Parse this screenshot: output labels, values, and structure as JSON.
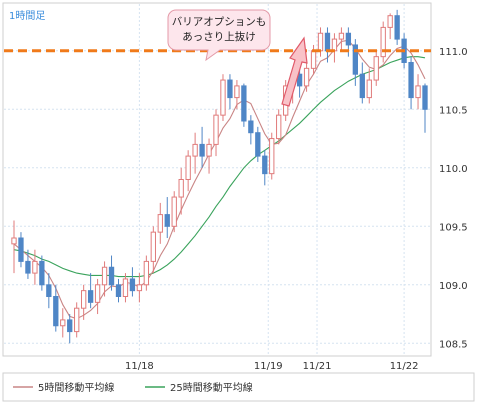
{
  "chart_data": {
    "type": "candlestick",
    "title": "1時間足",
    "x_tick_labels": [
      "11/18",
      "11/19",
      "11/21",
      "11/22"
    ],
    "y_ticks": [
      108.5,
      109.0,
      109.5,
      110.0,
      110.5,
      111.0
    ],
    "ylim": [
      108.4,
      111.4
    ],
    "barrier_level": 111.0,
    "annotation": "バリアオプションも\nあっさり上抜け",
    "legend": [
      "5時間移動平均線",
      "25時間移動平均線"
    ],
    "colors": {
      "up_candle": "#f2a3a3",
      "up_candle_stroke": "#e07b7b",
      "down_candle": "#4f86c6",
      "ma5": "#c98585",
      "ma25": "#3aa35c",
      "barrier": "#f07a1a",
      "arrow_fill": "#f9c2c8",
      "arrow_stroke": "#e05a6a",
      "annotation_fill": "#fde6ec",
      "annotation_stroke": "#e49aa8"
    },
    "candles": [
      [
        109.35,
        109.55,
        109.1,
        109.4
      ],
      [
        109.4,
        109.45,
        109.15,
        109.2
      ],
      [
        109.2,
        109.3,
        109.05,
        109.1
      ],
      [
        109.1,
        109.3,
        109.0,
        109.2
      ],
      [
        109.2,
        109.25,
        108.95,
        109.0
      ],
      [
        109.0,
        109.1,
        108.8,
        108.9
      ],
      [
        108.9,
        109.0,
        108.6,
        108.65
      ],
      [
        108.65,
        108.8,
        108.55,
        108.7
      ],
      [
        108.7,
        108.75,
        108.5,
        108.6
      ],
      [
        108.6,
        108.85,
        108.55,
        108.8
      ],
      [
        108.8,
        109.0,
        108.7,
        108.95
      ],
      [
        108.95,
        109.1,
        108.8,
        108.85
      ],
      [
        108.85,
        109.05,
        108.75,
        109.0
      ],
      [
        109.0,
        109.2,
        108.9,
        109.15
      ],
      [
        109.15,
        109.25,
        108.95,
        109.0
      ],
      [
        109.0,
        109.05,
        108.85,
        108.9
      ],
      [
        108.9,
        109.1,
        108.85,
        109.05
      ],
      [
        109.05,
        109.15,
        108.9,
        108.95
      ],
      [
        108.95,
        109.1,
        108.85,
        109.0
      ],
      [
        109.0,
        109.25,
        108.95,
        109.2
      ],
      [
        109.2,
        109.5,
        109.1,
        109.45
      ],
      [
        109.45,
        109.7,
        109.35,
        109.6
      ],
      [
        109.6,
        109.75,
        109.4,
        109.5
      ],
      [
        109.5,
        109.8,
        109.45,
        109.75
      ],
      [
        109.75,
        110.0,
        109.6,
        109.9
      ],
      [
        109.9,
        110.15,
        109.8,
        110.1
      ],
      [
        110.1,
        110.3,
        109.95,
        110.2
      ],
      [
        110.2,
        110.35,
        110.0,
        110.1
      ],
      [
        110.1,
        110.25,
        109.95,
        110.2
      ],
      [
        110.2,
        110.5,
        110.1,
        110.45
      ],
      [
        110.45,
        110.8,
        110.4,
        110.75
      ],
      [
        110.75,
        110.8,
        110.5,
        110.6
      ],
      [
        110.6,
        110.75,
        110.5,
        110.7
      ],
      [
        110.7,
        110.72,
        110.35,
        110.4
      ],
      [
        110.4,
        110.45,
        110.2,
        110.3
      ],
      [
        110.3,
        110.35,
        110.05,
        110.1
      ],
      [
        110.1,
        110.15,
        109.85,
        109.95
      ],
      [
        109.95,
        110.3,
        109.9,
        110.25
      ],
      [
        110.25,
        110.5,
        110.2,
        110.45
      ],
      [
        110.45,
        110.75,
        110.4,
        110.7
      ],
      [
        110.7,
        110.85,
        110.55,
        110.8
      ],
      [
        110.8,
        110.95,
        110.6,
        110.7
      ],
      [
        110.7,
        110.9,
        110.65,
        110.85
      ],
      [
        110.85,
        111.05,
        110.8,
        111.0
      ],
      [
        111.0,
        111.2,
        110.95,
        111.15
      ],
      [
        111.15,
        111.2,
        110.9,
        111.0
      ],
      [
        111.0,
        111.15,
        110.9,
        111.1
      ],
      [
        111.1,
        111.2,
        111.0,
        111.15
      ],
      [
        111.15,
        111.2,
        110.95,
        111.05
      ],
      [
        111.05,
        111.1,
        110.7,
        110.8
      ],
      [
        110.8,
        110.9,
        110.55,
        110.6
      ],
      [
        110.6,
        110.85,
        110.55,
        110.75
      ],
      [
        110.75,
        111.0,
        110.7,
        110.95
      ],
      [
        110.95,
        111.25,
        110.9,
        111.2
      ],
      [
        111.2,
        111.32,
        111.1,
        111.3
      ],
      [
        111.3,
        111.35,
        111.05,
        111.1
      ],
      [
        111.1,
        111.15,
        110.85,
        110.9
      ],
      [
        110.9,
        110.95,
        110.5,
        110.6
      ],
      [
        110.6,
        110.8,
        110.5,
        110.7
      ],
      [
        110.7,
        110.72,
        110.3,
        110.5
      ]
    ],
    "ma5": [
      109.35,
      109.3,
      109.25,
      109.2,
      109.15,
      109.08,
      108.97,
      108.83,
      108.73,
      108.71,
      108.74,
      108.78,
      108.84,
      108.94,
      108.99,
      108.98,
      109.02,
      109.01,
      108.98,
      109.03,
      109.12,
      109.25,
      109.35,
      109.5,
      109.64,
      109.77,
      109.89,
      110.0,
      110.12,
      110.22,
      110.34,
      110.42,
      110.54,
      110.58,
      110.55,
      110.42,
      110.29,
      110.2,
      110.21,
      110.28,
      110.43,
      110.57,
      110.71,
      110.8,
      110.91,
      110.94,
      111.01,
      111.08,
      111.09,
      111.02,
      110.93,
      110.86,
      110.84,
      110.88,
      110.96,
      111.02,
      111.04,
      110.98,
      110.88,
      110.76
    ],
    "ma25": [
      109.3,
      109.29,
      109.27,
      109.25,
      109.22,
      109.2,
      109.17,
      109.14,
      109.12,
      109.1,
      109.09,
      109.08,
      109.08,
      109.08,
      109.08,
      109.07,
      109.07,
      109.07,
      109.07,
      109.08,
      109.1,
      109.13,
      109.17,
      109.22,
      109.28,
      109.35,
      109.42,
      109.5,
      109.58,
      109.67,
      109.75,
      109.84,
      109.92,
      110.0,
      110.06,
      110.11,
      110.15,
      110.19,
      110.23,
      110.28,
      110.33,
      110.38,
      110.44,
      110.5,
      110.56,
      110.61,
      110.66,
      110.7,
      110.74,
      110.77,
      110.8,
      110.82,
      110.84,
      110.87,
      110.9,
      110.92,
      110.94,
      110.95,
      110.95,
      110.94
    ]
  }
}
